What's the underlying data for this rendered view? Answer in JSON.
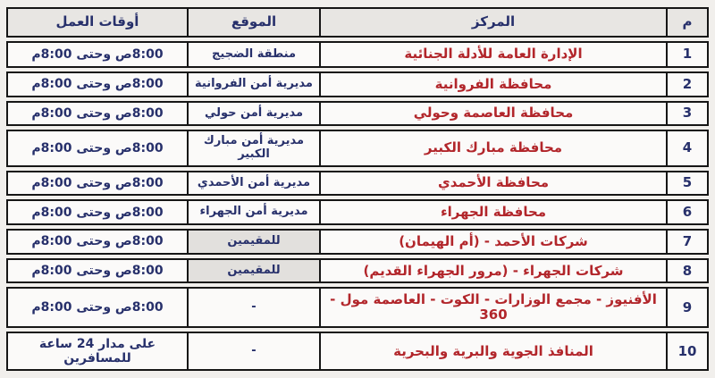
{
  "chart_data": {
    "type": "table",
    "direction": "rtl",
    "columns": {
      "no": "م",
      "center": "المركز",
      "location": "الموقع",
      "hours": "أوقات العمل"
    },
    "rows": [
      {
        "no": "1",
        "center": "الإدارة العامة للأدلة الجنائية",
        "location": "منطقة الضجيج",
        "hours": "8:00ص وحتى 8:00م",
        "location_shaded": false
      },
      {
        "no": "2",
        "center": "محافظة الفروانية",
        "location": "مديرية أمن الفروانية",
        "hours": "8:00ص وحتى 8:00م",
        "location_shaded": false
      },
      {
        "no": "3",
        "center": "محافظة العاصمة وحولي",
        "location": "مديرية أمن حولي",
        "hours": "8:00ص وحتى 8:00م",
        "location_shaded": false
      },
      {
        "no": "4",
        "center": "محافظة مبارك الكبير",
        "location": "مديرية أمن مبارك الكبير",
        "hours": "8:00ص وحتى 8:00م",
        "location_shaded": false
      },
      {
        "no": "5",
        "center": "محافظة الأحمدي",
        "location": "مديرية أمن الأحمدي",
        "hours": "8:00ص وحتى 8:00م",
        "location_shaded": false
      },
      {
        "no": "6",
        "center": "محافظة الجهراء",
        "location": "مديرية أمن الجهراء",
        "hours": "8:00ص وحتى 8:00م",
        "location_shaded": false
      },
      {
        "no": "7",
        "center": "شركات الأحمد - (أم الهيمان)",
        "location": "للمقيمين",
        "hours": "8:00ص وحتى 8:00م",
        "location_shaded": true
      },
      {
        "no": "8",
        "center": "شركات الجهراء - (مرور الجهراء القديم)",
        "location": "للمقيمين",
        "hours": "8:00ص وحتى 8:00م",
        "location_shaded": true
      },
      {
        "no": "9",
        "center": "الأفنيوز - مجمع الوزارات - الكوت - العاصمة مول - 360",
        "location": "-",
        "hours": "8:00ص وحتى 8:00م",
        "location_shaded": false
      },
      {
        "no": "10",
        "center": "المنافذ الجوية والبرية والبحرية",
        "location": "-",
        "hours": "على مدار 24 ساعة للمسافرين",
        "location_shaded": false
      }
    ]
  },
  "colors": {
    "navy_text": "#27306b",
    "red_text": "#b2262b",
    "header_bg": "#e8e6e3",
    "cell_bg": "#fbfaf9",
    "shaded_cell_bg": "#e2e0dd",
    "border": "#161616",
    "page_bg": "#f1efec"
  }
}
